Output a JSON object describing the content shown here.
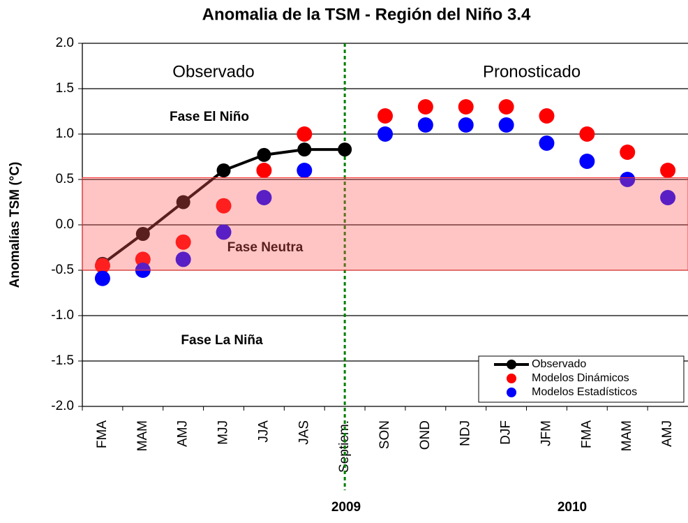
{
  "chart_data": {
    "type": "scatter-line",
    "title": "Anomalia de la TSM - Región del Niño 3.4",
    "y_label": "Anomalías TSM (°C)",
    "categories": [
      "FMA",
      "MAM",
      "AMJ",
      "MJJ",
      "JJA",
      "JAS",
      "Septiem.",
      "SON",
      "OND",
      "NDJ",
      "DJF",
      "JFM",
      "FMA",
      "MAM",
      "AMJ"
    ],
    "years": [
      "2009",
      "2010"
    ],
    "annotations": {
      "observed": "Observado",
      "forecast": "Pronosticado",
      "nino": "Fase El Niño",
      "neutral": "Fase Neutra",
      "nina": "Fase La Niña"
    },
    "neutral_band": [
      -0.5,
      0.52
    ],
    "series": [
      {
        "name": "Observado",
        "color": "#000000",
        "style": "line",
        "values": [
          -0.43,
          -0.1,
          0.25,
          0.6,
          0.77,
          0.83,
          0.83,
          null,
          null,
          null,
          null,
          null,
          null,
          null,
          null
        ]
      },
      {
        "name": "Modelos Dinámicos",
        "color": "#ff0000",
        "style": "points",
        "values": [
          -0.45,
          -0.38,
          -0.19,
          0.21,
          0.6,
          1.0,
          null,
          1.2,
          1.3,
          1.3,
          1.3,
          1.2,
          1.0,
          0.8,
          0.6
        ]
      },
      {
        "name": "Modelos Estadísticos",
        "color": "#0000ff",
        "style": "points",
        "values": [
          -0.59,
          -0.5,
          -0.38,
          -0.08,
          0.3,
          0.6,
          null,
          1.0,
          1.1,
          1.1,
          1.1,
          0.9,
          0.7,
          0.5,
          0.3
        ]
      }
    ],
    "ylim": [
      -2.0,
      2.0
    ],
    "yticks": [
      {
        "value": -2.0,
        "label": "-2.0"
      },
      {
        "value": -1.5,
        "label": "-1.5"
      },
      {
        "value": -1.0,
        "label": "-1.0"
      },
      {
        "value": -0.5,
        "label": "-0.5"
      },
      {
        "value": 0,
        "label": "0.0"
      },
      {
        "value": 0.5,
        "label": "0.5"
      },
      {
        "value": 1.0,
        "label": "1.0"
      },
      {
        "value": 1.5,
        "label": "1.5"
      },
      {
        "value": 2.0,
        "label": "2.0"
      }
    ],
    "grid": true
  }
}
